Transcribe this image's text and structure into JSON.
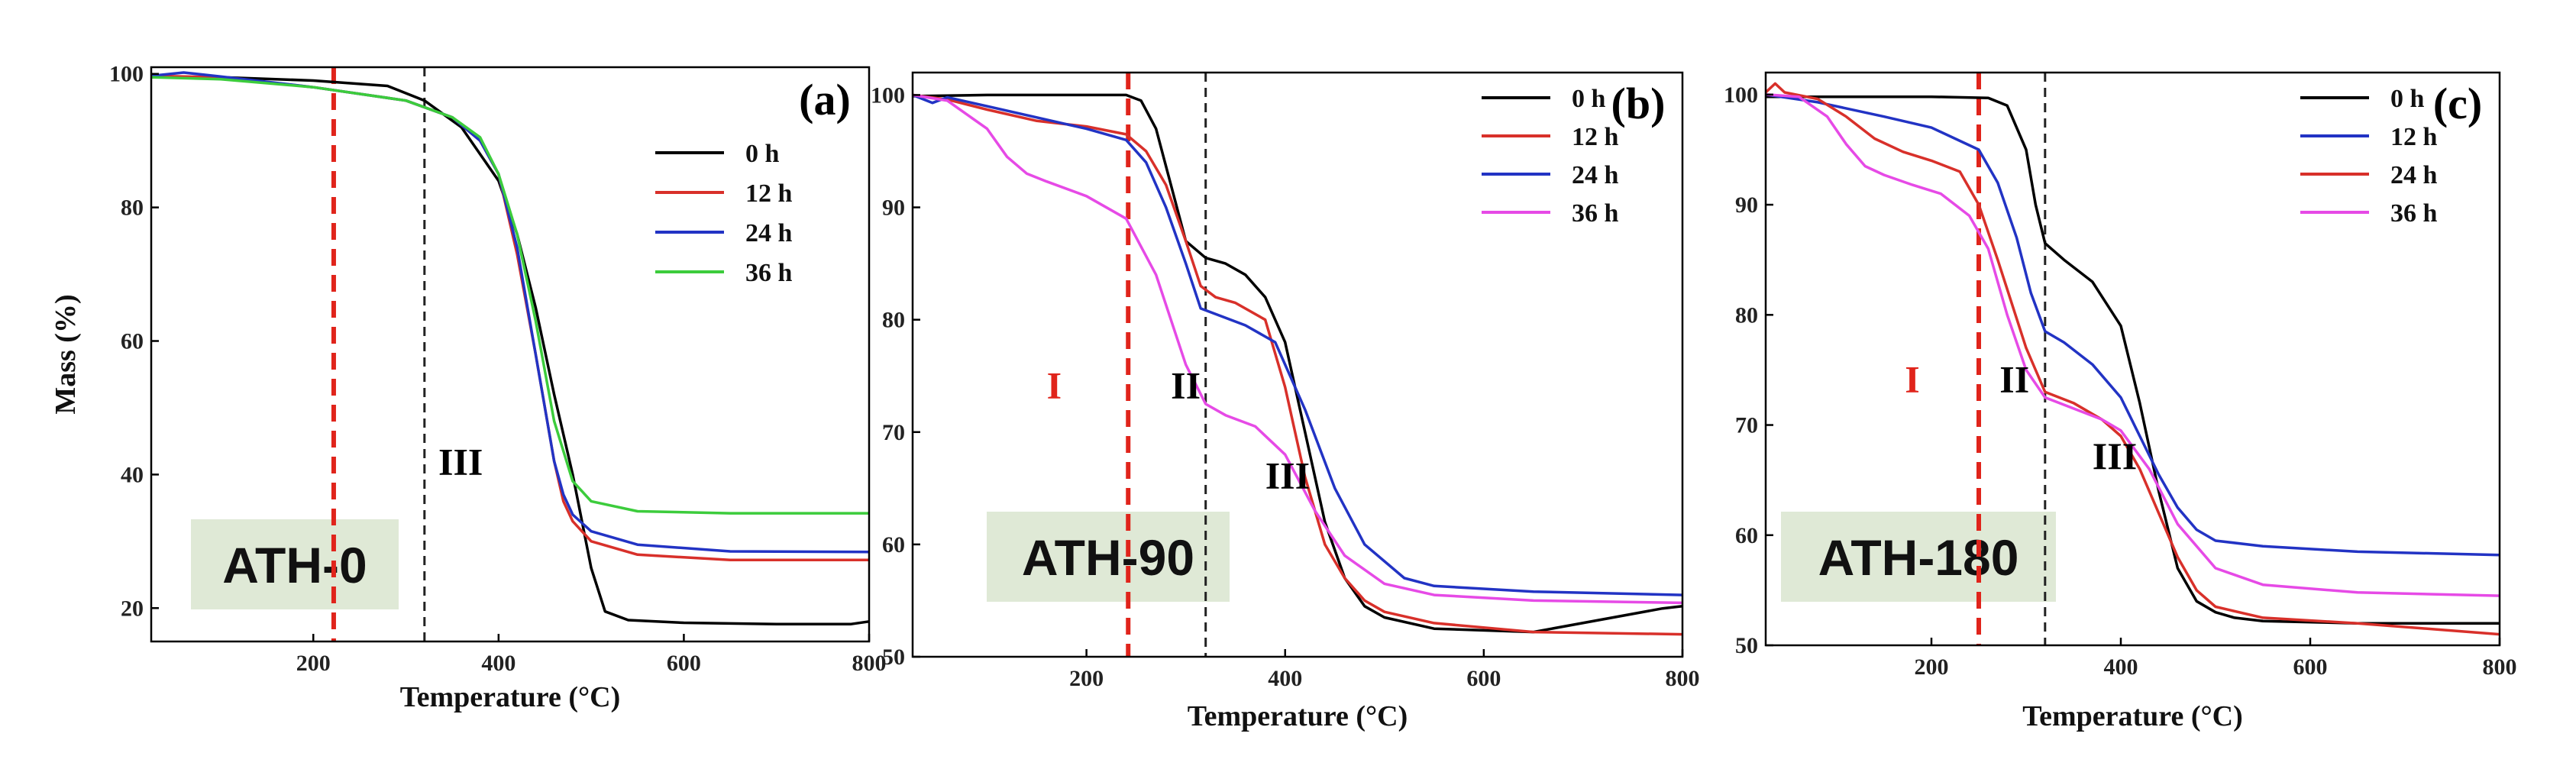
{
  "chart_data": [
    {
      "type": "line",
      "panel_label": "(a)",
      "sample": "ATH-0",
      "xlabel": "Temperature (°C)",
      "ylabel": "Mass (%)",
      "xlim": [
        25,
        800
      ],
      "ylim": [
        15,
        101
      ],
      "xticks": [
        200,
        400,
        600,
        800
      ],
      "yticks": [
        20,
        40,
        60,
        80,
        100
      ],
      "vlines": [
        {
          "x": 222,
          "color": "#e0241b",
          "style": "dashed-thick"
        },
        {
          "x": 320,
          "color": "#222222",
          "style": "dashed-thin"
        }
      ],
      "regions": [
        {
          "label": "III",
          "x": 335,
          "y": 40,
          "color": "#000000"
        }
      ],
      "series": [
        {
          "name": "0 h",
          "color": "#000000",
          "x": [
            25,
            100,
            200,
            280,
            320,
            360,
            400,
            420,
            440,
            460,
            480,
            500,
            515,
            540,
            600,
            700,
            780,
            800
          ],
          "y": [
            99.5,
            99.5,
            99,
            98.2,
            96,
            92,
            84,
            76,
            65,
            52,
            40,
            26,
            19.5,
            18.2,
            17.8,
            17.6,
            17.6,
            18
          ]
        },
        {
          "name": "12 h",
          "color": "#d8302a",
          "x": [
            25,
            100,
            200,
            300,
            350,
            380,
            400,
            420,
            440,
            460,
            470,
            480,
            500,
            550,
            650,
            800
          ],
          "y": [
            99.7,
            99.5,
            98,
            96,
            93.5,
            90,
            85,
            73,
            58,
            42,
            36,
            33,
            30,
            28,
            27.2,
            27.2
          ]
        },
        {
          "name": "24 h",
          "color": "#2233c4",
          "x": [
            25,
            60,
            100,
            200,
            300,
            350,
            380,
            400,
            420,
            440,
            460,
            470,
            480,
            500,
            550,
            650,
            800
          ],
          "y": [
            99.7,
            100.2,
            99.6,
            98,
            96,
            93.5,
            90,
            85,
            74,
            58,
            42,
            37,
            34,
            31.5,
            29.5,
            28.5,
            28.4
          ]
        },
        {
          "name": "36 h",
          "color": "#3ccc3c",
          "x": [
            25,
            100,
            200,
            300,
            350,
            380,
            400,
            420,
            440,
            460,
            480,
            500,
            550,
            650,
            800
          ],
          "y": [
            99.5,
            99.2,
            98,
            96,
            93.5,
            90.5,
            85,
            76,
            63,
            48,
            39,
            36,
            34.5,
            34.2,
            34.2
          ]
        }
      ]
    },
    {
      "type": "line",
      "panel_label": "(b)",
      "sample": "ATH-90",
      "xlabel": "Temperature (°C)",
      "ylabel": "",
      "xlim": [
        25,
        800
      ],
      "ylim": [
        50,
        102
      ],
      "xticks": [
        200,
        400,
        600,
        800
      ],
      "yticks": [
        50,
        60,
        70,
        80,
        90,
        100
      ],
      "vlines": [
        {
          "x": 242,
          "color": "#e0241b",
          "style": "dashed-thick"
        },
        {
          "x": 320,
          "color": "#222222",
          "style": "dashed-thin"
        }
      ],
      "regions": [
        {
          "label": "I",
          "x": 160,
          "y": 73,
          "color": "#e0241b"
        },
        {
          "label": "II",
          "x": 285,
          "y": 73,
          "color": "#000000"
        },
        {
          "label": "III",
          "x": 380,
          "y": 65,
          "color": "#000000"
        }
      ],
      "series": [
        {
          "name": "0 h",
          "color": "#000000",
          "x": [
            25,
            100,
            200,
            240,
            255,
            270,
            285,
            300,
            320,
            340,
            360,
            380,
            400,
            420,
            440,
            460,
            480,
            500,
            550,
            650,
            780,
            800
          ],
          "y": [
            99.9,
            100,
            100,
            100,
            99.5,
            97,
            92,
            87,
            85.5,
            85,
            84,
            82,
            78,
            70,
            62,
            57,
            54.5,
            53.5,
            52.5,
            52.2,
            54.3,
            54.5
          ]
        },
        {
          "name": "12 h",
          "color": "#d8302a",
          "x": [
            25,
            60,
            100,
            150,
            200,
            240,
            260,
            280,
            300,
            315,
            330,
            350,
            380,
            400,
            420,
            440,
            460,
            480,
            500,
            550,
            650,
            800
          ],
          "y": [
            100,
            99.6,
            98.7,
            97.7,
            97.2,
            96.5,
            95,
            92,
            87,
            83,
            82,
            81.5,
            80,
            74,
            66,
            60,
            57,
            55,
            54,
            53,
            52.2,
            52
          ]
        },
        {
          "name": "24 h",
          "color": "#2233c4",
          "x": [
            25,
            45,
            60,
            100,
            150,
            200,
            240,
            260,
            280,
            300,
            315,
            330,
            360,
            390,
            420,
            450,
            480,
            520,
            550,
            650,
            800
          ],
          "y": [
            100,
            99.3,
            99.8,
            99,
            98,
            97,
            96,
            94,
            90,
            85,
            81,
            80.5,
            79.5,
            78,
            72,
            65,
            60,
            57,
            56.3,
            55.8,
            55.5
          ]
        },
        {
          "name": "36 h",
          "color": "#e64ae6",
          "x": [
            25,
            60,
            100,
            120,
            140,
            160,
            200,
            240,
            270,
            300,
            320,
            340,
            370,
            400,
            430,
            460,
            500,
            550,
            650,
            800
          ],
          "y": [
            100,
            99.5,
            97,
            94.5,
            93,
            92.3,
            91,
            89,
            84,
            76,
            72.5,
            71.5,
            70.5,
            68,
            63,
            59,
            56.5,
            55.5,
            55,
            54.8
          ]
        }
      ]
    },
    {
      "type": "line",
      "panel_label": "(c)",
      "sample": "ATH-180",
      "xlabel": "Temperature (°C)",
      "ylabel": "",
      "xlim": [
        25,
        800
      ],
      "ylim": [
        50,
        102
      ],
      "xticks": [
        200,
        400,
        600,
        800
      ],
      "yticks": [
        50,
        60,
        70,
        80,
        90,
        100
      ],
      "vlines": [
        {
          "x": 250,
          "color": "#e0241b",
          "style": "dashed-thick"
        },
        {
          "x": 320,
          "color": "#222222",
          "style": "dashed-thin"
        }
      ],
      "regions": [
        {
          "label": "I",
          "x": 172,
          "y": 73,
          "color": "#e0241b"
        },
        {
          "label": "II",
          "x": 272,
          "y": 73,
          "color": "#000000"
        },
        {
          "label": "III",
          "x": 370,
          "y": 66,
          "color": "#000000"
        }
      ],
      "series": [
        {
          "name": "0 h",
          "color": "#000000",
          "x": [
            25,
            100,
            200,
            260,
            280,
            300,
            310,
            320,
            340,
            370,
            400,
            420,
            440,
            460,
            480,
            500,
            520,
            550,
            650,
            800
          ],
          "y": [
            99.8,
            99.8,
            99.8,
            99.7,
            99,
            95,
            90,
            86.5,
            85,
            83,
            79,
            72,
            64,
            57,
            54,
            53,
            52.5,
            52.2,
            52,
            52
          ]
        },
        {
          "name": "12 h",
          "color": "#2233c4",
          "x": [
            25,
            80,
            150,
            200,
            250,
            270,
            290,
            305,
            320,
            340,
            370,
            400,
            420,
            440,
            460,
            480,
            500,
            550,
            650,
            800
          ],
          "y": [
            100,
            99.3,
            98,
            97,
            95,
            92,
            87,
            82,
            78.5,
            77.5,
            75.5,
            72.5,
            69,
            65.5,
            62.5,
            60.5,
            59.5,
            59,
            58.5,
            58.2
          ]
        },
        {
          "name": "24 h",
          "color": "#d8302a",
          "x": [
            25,
            35,
            45,
            80,
            110,
            140,
            170,
            200,
            230,
            250,
            270,
            300,
            320,
            350,
            380,
            400,
            420,
            440,
            460,
            480,
            500,
            550,
            650,
            800
          ],
          "y": [
            100.2,
            101,
            100.2,
            99.6,
            98,
            96,
            94.8,
            94,
            93,
            90,
            85,
            77,
            73,
            72,
            70.5,
            69,
            66,
            62,
            58,
            55,
            53.5,
            52.5,
            52,
            51
          ]
        },
        {
          "name": "36 h",
          "color": "#e64ae6",
          "x": [
            25,
            60,
            90,
            110,
            130,
            150,
            180,
            210,
            240,
            260,
            280,
            300,
            320,
            350,
            380,
            400,
            430,
            460,
            500,
            550,
            650,
            800
          ],
          "y": [
            100,
            99.8,
            98,
            95.5,
            93.5,
            92.7,
            91.8,
            91,
            89,
            86,
            80,
            75,
            72.5,
            71.5,
            70.5,
            69.5,
            66,
            61,
            57,
            55.5,
            54.8,
            54.5
          ]
        }
      ]
    }
  ]
}
